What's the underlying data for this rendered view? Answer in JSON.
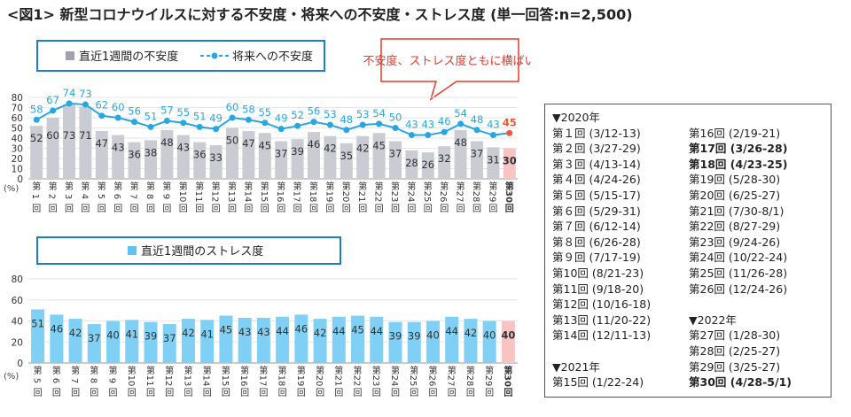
{
  "title": "<図1> 新型コロナウイルスに対する不安度・将来への不安度・ストレス度 (単一回答:n=2,500)",
  "callout": "不安度、ストレス度ともに横ばい",
  "colors": {
    "bar": "#c9ccd3",
    "bar_last": "#f8c3c3",
    "line": "#27a7e0",
    "line_last": "#ef5a3c",
    "stress_bar": "#7fd0f4",
    "frame": "#1e7fbf"
  },
  "chart_data": [
    {
      "type": "bar+line",
      "legend": [
        "直近1週間の不安度",
        "将来への不安度"
      ],
      "categories": [
        "第1回",
        "第2回",
        "第3回",
        "第4回",
        "第5回",
        "第6回",
        "第7回",
        "第8回",
        "第9回",
        "第10回",
        "第11回",
        "第12回",
        "第13回",
        "第14回",
        "第15回",
        "第16回",
        "第17回",
        "第18回",
        "第19回",
        "第20回",
        "第21回",
        "第22回",
        "第23回",
        "第24回",
        "第25回",
        "第26回",
        "第27回",
        "第28回",
        "第29回",
        "第30回"
      ],
      "series": [
        {
          "name": "直近1週間の不安度",
          "type": "bar",
          "values": [
            52,
            60,
            73,
            71,
            47,
            43,
            36,
            38,
            48,
            43,
            36,
            33,
            50,
            47,
            45,
            37,
            39,
            46,
            42,
            35,
            42,
            45,
            37,
            28,
            26,
            32,
            48,
            37,
            31,
            30
          ]
        },
        {
          "name": "将来への不安度",
          "type": "line",
          "values": [
            58,
            67,
            74,
            73,
            62,
            60,
            56,
            51,
            57,
            55,
            51,
            49,
            60,
            58,
            55,
            49,
            52,
            56,
            53,
            48,
            53,
            54,
            50,
            43,
            43,
            46,
            54,
            48,
            43,
            45
          ]
        }
      ],
      "ylim": [
        0,
        80
      ],
      "yticks": [
        0,
        10,
        20,
        30,
        40,
        50,
        60,
        70,
        80
      ],
      "yunit": "(%)"
    },
    {
      "type": "bar",
      "legend": [
        "直近1週間のストレス度"
      ],
      "categories": [
        "第5回",
        "第6回",
        "第7回",
        "第8回",
        "第9回",
        "第10回",
        "第11回",
        "第12回",
        "第13回",
        "第14回",
        "第15回",
        "第16回",
        "第17回",
        "第18回",
        "第19回",
        "第20回",
        "第21回",
        "第22回",
        "第23回",
        "第24回",
        "第25回",
        "第26回",
        "第27回",
        "第28回",
        "第29回",
        "第30回"
      ],
      "series": [
        {
          "name": "直近1週間のストレス度",
          "values": [
            51,
            46,
            42,
            37,
            40,
            41,
            39,
            37,
            42,
            41,
            45,
            43,
            43,
            44,
            46,
            42,
            44,
            45,
            44,
            39,
            39,
            40,
            44,
            42,
            40,
            40
          ]
        }
      ],
      "ylim": [
        0,
        80
      ],
      "yticks": [
        0,
        20,
        40,
        60,
        80
      ],
      "yunit": "(%)"
    }
  ],
  "schedule": {
    "left": [
      {
        "text": "▼2020年",
        "bold": false
      },
      {
        "text": "第１回 (3/12-13)",
        "bold": false
      },
      {
        "text": "第２回 (3/27-29)",
        "bold": false
      },
      {
        "text": "第３回 (4/13-14)",
        "bold": false
      },
      {
        "text": "第４回 (4/24-26)",
        "bold": false
      },
      {
        "text": "第５回 (5/15-17)",
        "bold": false
      },
      {
        "text": "第６回 (5/29-31)",
        "bold": false
      },
      {
        "text": "第７回 (6/12-14)",
        "bold": false
      },
      {
        "text": "第８回 (6/26-28)",
        "bold": false
      },
      {
        "text": "第９回 (7/17-19)",
        "bold": false
      },
      {
        "text": "第10回 (8/21-23)",
        "bold": false
      },
      {
        "text": "第11回 (9/18-20)",
        "bold": false
      },
      {
        "text": "第12回 (10/16-18)",
        "bold": false
      },
      {
        "text": "第13回 (11/20-22)",
        "bold": false
      },
      {
        "text": "第14回 (12/11-13)",
        "bold": false
      },
      {
        "text": "",
        "bold": false
      },
      {
        "text": "▼2021年",
        "bold": false
      },
      {
        "text": "第15回 (1/22-24)",
        "bold": false
      }
    ],
    "right": [
      {
        "text": "",
        "bold": false
      },
      {
        "text": "第16回 (2/19-21)",
        "bold": false
      },
      {
        "text": "第17回 (3/26-28)",
        "bold": true
      },
      {
        "text": "第18回 (4/23-25)",
        "bold": true
      },
      {
        "text": "第19回 (5/28-30)",
        "bold": false
      },
      {
        "text": "第20回 (6/25-27)",
        "bold": false
      },
      {
        "text": "第21回 (7/30-8/1)",
        "bold": false
      },
      {
        "text": "第22回 (8/27-29)",
        "bold": false
      },
      {
        "text": "第23回 (9/24-26)",
        "bold": false
      },
      {
        "text": "第24回 (10/22-24)",
        "bold": false
      },
      {
        "text": "第25回 (11/26-28)",
        "bold": false
      },
      {
        "text": "第26回 (12/24-26)",
        "bold": false
      },
      {
        "text": "",
        "bold": false
      },
      {
        "text": "▼2022年",
        "bold": false
      },
      {
        "text": "第27回 (1/28-30)",
        "bold": false
      },
      {
        "text": "第28回 (2/25-27)",
        "bold": false
      },
      {
        "text": "第29回 (3/25-27)",
        "bold": false
      },
      {
        "text": "第30回 (4/28-5/1)",
        "bold": true
      }
    ]
  }
}
